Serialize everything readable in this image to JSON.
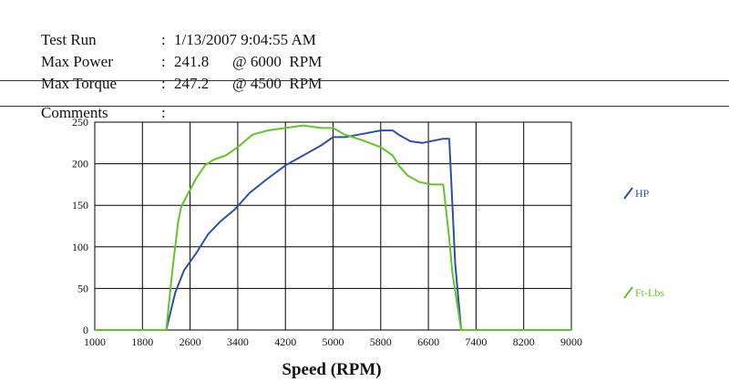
{
  "header": {
    "test_run": {
      "label": "Test Run",
      "value": "1/13/2007 9:04:55 AM"
    },
    "max_power": {
      "label": "Max Power",
      "value": "241.8",
      "at": "@ 6000",
      "unit": "RPM"
    },
    "max_torque": {
      "label": "Max Torque",
      "value": "247.2",
      "at": "@ 4500",
      "unit": "RPM"
    },
    "comments": {
      "label": "Comments",
      "value": ""
    },
    "colon": ":"
  },
  "colors": {
    "hp": "#2e4fa8",
    "torque": "#66c22a",
    "grid": "#000000",
    "page": "#ffffff"
  },
  "chart_data": {
    "type": "line",
    "title": "",
    "xlabel": "Speed (RPM)",
    "ylabel": "",
    "xlim": [
      1000,
      9000
    ],
    "ylim": [
      0,
      250
    ],
    "xticks": [
      1000,
      1800,
      2600,
      3400,
      4200,
      5000,
      5800,
      6600,
      7400,
      8200,
      9000
    ],
    "yticks": [
      0,
      50,
      100,
      150,
      200,
      250
    ],
    "grid": true,
    "legend_position": "right",
    "series": [
      {
        "name": "HP",
        "color": "#2e4fa8",
        "x": [
          1000,
          2200,
          2250,
          2350,
          2500,
          2700,
          2900,
          3100,
          3350,
          3600,
          3900,
          4200,
          4500,
          4800,
          5000,
          5200,
          5500,
          5800,
          6000,
          6100,
          6300,
          6500,
          6700,
          6850,
          6950,
          7050,
          7150,
          7300,
          9000
        ],
        "y": [
          0,
          0,
          15,
          45,
          72,
          92,
          115,
          130,
          145,
          165,
          182,
          198,
          210,
          222,
          232,
          232,
          236,
          240,
          240,
          235,
          227,
          225,
          228,
          230,
          230,
          80,
          0,
          0,
          0
        ]
      },
      {
        "name": "Ft-Lbs",
        "color": "#66c22a",
        "x": [
          1000,
          2200,
          2300,
          2400,
          2450,
          2550,
          2700,
          2850,
          3000,
          3200,
          3400,
          3650,
          3900,
          4200,
          4500,
          4800,
          5000,
          5200,
          5500,
          5800,
          6000,
          6100,
          6250,
          6450,
          6650,
          6850,
          6950,
          7000,
          7150,
          7300,
          9000
        ],
        "y": [
          0,
          0,
          70,
          130,
          148,
          162,
          182,
          198,
          205,
          210,
          220,
          235,
          240,
          243,
          246,
          243,
          243,
          235,
          228,
          220,
          210,
          198,
          186,
          178,
          175,
          175,
          110,
          70,
          0,
          0,
          0
        ]
      }
    ]
  }
}
